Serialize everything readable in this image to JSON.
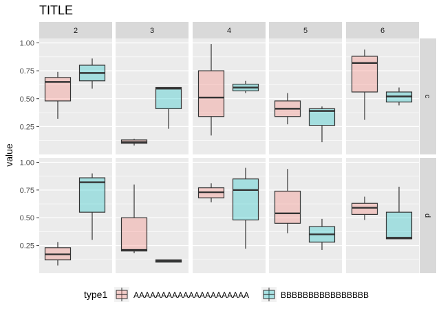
{
  "chart_data": {
    "type": "boxplot",
    "title": "TITLE",
    "xlabel": "",
    "ylabel": "value",
    "ylim": [
      0,
      1.04
    ],
    "yticks": [
      "0.25",
      "0.50",
      "0.75",
      "1.00"
    ],
    "facet_cols": [
      "2",
      "3",
      "4",
      "5",
      "6"
    ],
    "facet_rows": [
      "c",
      "d"
    ],
    "legend": {
      "title": "type1",
      "position": "bottom",
      "entries": [
        {
          "label": "AAAAAAAAAAAAAAAAAAAAA",
          "color": "#F8766D"
        },
        {
          "label": "BBBBBBBBBBBBBBBB",
          "color": "#00BFC4"
        }
      ]
    },
    "panels": [
      {
        "row": "c",
        "col": "2",
        "boxes": [
          {
            "group": "A",
            "min": 0.32,
            "q1": 0.48,
            "median": 0.65,
            "q3": 0.69,
            "max": 0.74
          },
          {
            "group": "B",
            "min": 0.59,
            "q1": 0.66,
            "median": 0.73,
            "q3": 0.8,
            "max": 0.86
          }
        ]
      },
      {
        "row": "c",
        "col": "3",
        "boxes": [
          {
            "group": "A",
            "min": 0.08,
            "q1": 0.1,
            "median": 0.11,
            "q3": 0.13,
            "max": 0.14
          },
          {
            "group": "B",
            "min": 0.23,
            "q1": 0.41,
            "median": 0.59,
            "q3": 0.6,
            "max": 0.6
          }
        ]
      },
      {
        "row": "c",
        "col": "4",
        "boxes": [
          {
            "group": "A",
            "min": 0.17,
            "q1": 0.34,
            "median": 0.51,
            "q3": 0.75,
            "max": 0.99
          },
          {
            "group": "B",
            "min": 0.55,
            "q1": 0.57,
            "median": 0.6,
            "q3": 0.63,
            "max": 0.66
          }
        ]
      },
      {
        "row": "c",
        "col": "5",
        "boxes": [
          {
            "group": "A",
            "min": 0.27,
            "q1": 0.34,
            "median": 0.41,
            "q3": 0.48,
            "max": 0.55
          },
          {
            "group": "B",
            "min": 0.11,
            "q1": 0.26,
            "median": 0.39,
            "q3": 0.41,
            "max": 0.43
          }
        ]
      },
      {
        "row": "c",
        "col": "6",
        "boxes": [
          {
            "group": "A",
            "min": 0.31,
            "q1": 0.56,
            "median": 0.82,
            "q3": 0.88,
            "max": 0.94
          },
          {
            "group": "B",
            "min": 0.44,
            "q1": 0.47,
            "median": 0.52,
            "q3": 0.56,
            "max": 0.6
          }
        ]
      },
      {
        "row": "d",
        "col": "2",
        "boxes": [
          {
            "group": "A",
            "min": 0.07,
            "q1": 0.12,
            "median": 0.17,
            "q3": 0.23,
            "max": 0.28
          },
          {
            "group": "B",
            "min": 0.3,
            "q1": 0.55,
            "median": 0.82,
            "q3": 0.86,
            "max": 0.9
          }
        ]
      },
      {
        "row": "d",
        "col": "3",
        "boxes": [
          {
            "group": "A",
            "min": 0.18,
            "q1": 0.2,
            "median": 0.21,
            "q3": 0.5,
            "max": 0.8
          },
          {
            "group": "B",
            "min": 0.1,
            "q1": 0.1,
            "median": 0.11,
            "q3": 0.12,
            "max": 0.12
          }
        ]
      },
      {
        "row": "d",
        "col": "4",
        "boxes": [
          {
            "group": "A",
            "min": 0.64,
            "q1": 0.68,
            "median": 0.73,
            "q3": 0.77,
            "max": 0.81
          },
          {
            "group": "B",
            "min": 0.22,
            "q1": 0.48,
            "median": 0.75,
            "q3": 0.85,
            "max": 0.95
          }
        ]
      },
      {
        "row": "d",
        "col": "5",
        "boxes": [
          {
            "group": "A",
            "min": 0.36,
            "q1": 0.45,
            "median": 0.54,
            "q3": 0.74,
            "max": 0.94
          },
          {
            "group": "B",
            "min": 0.21,
            "q1": 0.28,
            "median": 0.35,
            "q3": 0.42,
            "max": 0.49
          }
        ]
      },
      {
        "row": "d",
        "col": "6",
        "boxes": [
          {
            "group": "A",
            "min": 0.48,
            "q1": 0.53,
            "median": 0.59,
            "q3": 0.63,
            "max": 0.69
          },
          {
            "group": "B",
            "min": 0.31,
            "q1": 0.31,
            "median": 0.32,
            "q3": 0.55,
            "max": 0.78
          }
        ]
      }
    ]
  }
}
